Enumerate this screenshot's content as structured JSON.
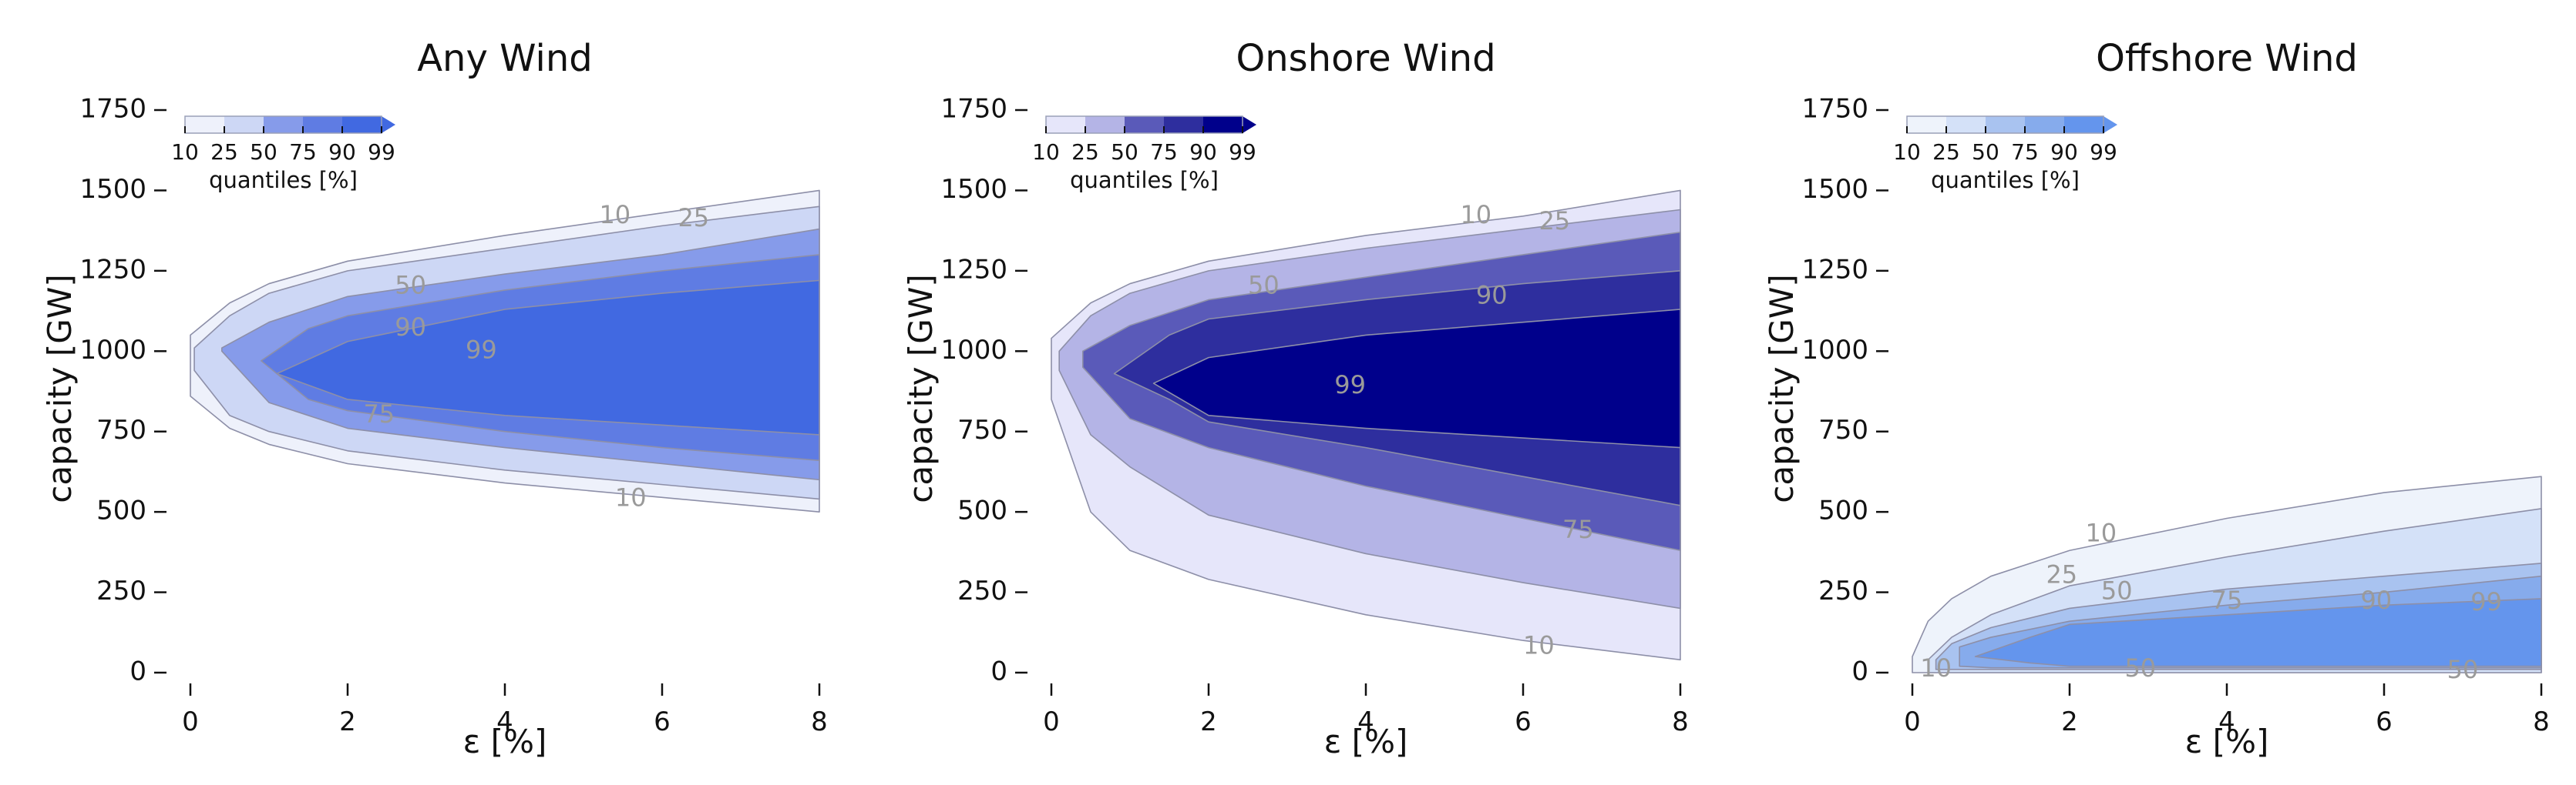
{
  "chart_data": [
    {
      "type": "contour",
      "title": "Any Wind",
      "xlabel": "ε [%]",
      "ylabel": "capacity [GW]",
      "xlim": [
        0,
        8
      ],
      "ylim": [
        0,
        1750
      ],
      "xticks": [
        "0",
        "2",
        "4",
        "6",
        "8"
      ],
      "yticks": [
        "0",
        "250",
        "500",
        "750",
        "1000",
        "1250",
        "1500",
        "1750"
      ],
      "colorbar": {
        "label": "quantiles [%]",
        "ticks": [
          "10",
          "25",
          "50",
          "75",
          "90",
          "99"
        ],
        "colors": [
          "#eef1fb",
          "#cdd7f5",
          "#869bea",
          "#5f7ce3",
          "#4169e1"
        ]
      },
      "bands": [
        {
          "quantile": 10,
          "x": [
            0,
            0.5,
            1,
            2,
            4,
            6,
            8
          ],
          "lower": [
            860,
            760,
            710,
            650,
            590,
            545,
            500
          ],
          "upper": [
            1050,
            1150,
            1210,
            1280,
            1360,
            1430,
            1500
          ]
        },
        {
          "quantile": 25,
          "x": [
            0.05,
            0.5,
            1,
            2,
            4,
            6,
            8
          ],
          "lower": [
            940,
            800,
            750,
            690,
            630,
            585,
            540
          ],
          "upper": [
            1010,
            1110,
            1180,
            1250,
            1320,
            1390,
            1450
          ]
        },
        {
          "quantile": 50,
          "x": [
            0.4,
            1,
            2,
            4,
            6,
            8
          ],
          "lower": [
            1000,
            840,
            760,
            700,
            650,
            600
          ],
          "upper": [
            1010,
            1090,
            1170,
            1240,
            1300,
            1380
          ]
        },
        {
          "quantile": 75,
          "x": [
            0.9,
            1.5,
            2,
            4,
            6,
            8
          ],
          "lower": [
            970,
            850,
            815,
            750,
            700,
            660
          ],
          "upper": [
            970,
            1070,
            1110,
            1190,
            1250,
            1300
          ]
        },
        {
          "quantile": 90,
          "x": [
            1.1,
            2,
            4,
            6,
            8
          ],
          "lower": [
            930,
            850,
            800,
            770,
            740
          ],
          "upper": [
            930,
            1030,
            1130,
            1180,
            1220
          ]
        }
      ],
      "contour_labels": [
        {
          "text": "10",
          "x": 5.6,
          "y": 540
        },
        {
          "text": "10",
          "x": 5.4,
          "y": 1420
        },
        {
          "text": "25",
          "x": 6.4,
          "y": 1410
        },
        {
          "text": "50",
          "x": 2.8,
          "y": 1200
        },
        {
          "text": "75",
          "x": 2.4,
          "y": 800
        },
        {
          "text": "90",
          "x": 2.8,
          "y": 1070
        },
        {
          "text": "99",
          "x": 3.7,
          "y": 1000
        }
      ]
    },
    {
      "type": "contour",
      "title": "Onshore Wind",
      "xlabel": "ε [%]",
      "ylabel": "capacity [GW]",
      "xlim": [
        0,
        8
      ],
      "ylim": [
        0,
        1750
      ],
      "xticks": [
        "0",
        "2",
        "4",
        "6",
        "8"
      ],
      "yticks": [
        "0",
        "250",
        "500",
        "750",
        "1000",
        "1250",
        "1500",
        "1750"
      ],
      "colorbar": {
        "label": "quantiles [%]",
        "ticks": [
          "10",
          "25",
          "50",
          "75",
          "90",
          "99"
        ],
        "colors": [
          "#e6e6fa",
          "#b4b4e6",
          "#5a5ab9",
          "#2e2e9e",
          "#00008b"
        ]
      },
      "bands": [
        {
          "quantile": 10,
          "x": [
            0,
            0.5,
            1,
            2,
            4,
            6,
            8
          ],
          "lower": [
            850,
            500,
            380,
            290,
            180,
            100,
            40
          ],
          "upper": [
            1040,
            1150,
            1210,
            1280,
            1360,
            1420,
            1500
          ]
        },
        {
          "quantile": 25,
          "x": [
            0.1,
            0.5,
            1,
            2,
            4,
            6,
            8
          ],
          "lower": [
            940,
            740,
            640,
            490,
            370,
            280,
            200
          ],
          "upper": [
            1000,
            1110,
            1180,
            1250,
            1320,
            1380,
            1440
          ]
        },
        {
          "quantile": 50,
          "x": [
            0.4,
            1,
            2,
            4,
            6,
            8
          ],
          "lower": [
            950,
            790,
            700,
            580,
            480,
            380
          ],
          "upper": [
            1000,
            1080,
            1160,
            1230,
            1300,
            1370
          ]
        },
        {
          "quantile": 75,
          "x": [
            0.8,
            1.5,
            2,
            4,
            6,
            8
          ],
          "lower": [
            930,
            850,
            780,
            700,
            610,
            520
          ],
          "upper": [
            930,
            1050,
            1100,
            1160,
            1210,
            1250
          ]
        },
        {
          "quantile": 90,
          "x": [
            1.3,
            2,
            4,
            6,
            8
          ],
          "lower": [
            900,
            800,
            760,
            730,
            700
          ],
          "upper": [
            900,
            980,
            1050,
            1090,
            1130
          ]
        }
      ],
      "contour_labels": [
        {
          "text": "10",
          "x": 6.2,
          "y": 80
        },
        {
          "text": "10",
          "x": 5.4,
          "y": 1420
        },
        {
          "text": "25",
          "x": 6.4,
          "y": 1400
        },
        {
          "text": "50",
          "x": 2.7,
          "y": 1200
        },
        {
          "text": "75",
          "x": 6.7,
          "y": 440
        },
        {
          "text": "90",
          "x": 5.6,
          "y": 1170
        },
        {
          "text": "99",
          "x": 3.8,
          "y": 890
        }
      ]
    },
    {
      "type": "contour",
      "title": "Offshore Wind",
      "xlabel": "ε [%]",
      "ylabel": "capacity [GW]",
      "xlim": [
        0,
        8
      ],
      "ylim": [
        0,
        1750
      ],
      "xticks": [
        "0",
        "2",
        "4",
        "6",
        "8"
      ],
      "yticks": [
        "0",
        "250",
        "500",
        "750",
        "1000",
        "1250",
        "1500",
        "1750"
      ],
      "colorbar": {
        "label": "quantiles [%]",
        "ticks": [
          "10",
          "25",
          "50",
          "75",
          "90",
          "99"
        ],
        "colors": [
          "#eef3fb",
          "#d4e1f8",
          "#a9c3f0",
          "#86abec",
          "#6495ed"
        ]
      },
      "bands": [
        {
          "quantile": 10,
          "x": [
            0,
            0.2,
            0.5,
            1,
            2,
            4,
            6,
            8
          ],
          "lower": [
            0,
            0,
            0,
            0,
            0,
            0,
            0,
            0
          ],
          "upper": [
            50,
            160,
            230,
            300,
            380,
            480,
            560,
            610
          ]
        },
        {
          "quantile": 25,
          "x": [
            0.2,
            0.5,
            1,
            2,
            4,
            6,
            8
          ],
          "lower": [
            0,
            0,
            0,
            0,
            0,
            0,
            0
          ],
          "upper": [
            40,
            110,
            180,
            270,
            360,
            440,
            510
          ]
        },
        {
          "quantile": 50,
          "x": [
            0.3,
            0.5,
            1,
            2,
            4,
            6,
            8
          ],
          "lower": [
            10,
            10,
            10,
            10,
            10,
            10,
            10
          ],
          "upper": [
            40,
            90,
            140,
            200,
            260,
            300,
            340
          ]
        },
        {
          "quantile": 75,
          "x": [
            0.6,
            1,
            2,
            4,
            6,
            8
          ],
          "lower": [
            20,
            15,
            15,
            15,
            15,
            15
          ],
          "upper": [
            80,
            110,
            160,
            210,
            250,
            300
          ]
        },
        {
          "quantile": 90,
          "x": [
            0.8,
            1.5,
            2,
            4,
            6,
            8
          ],
          "lower": [
            50,
            30,
            20,
            20,
            20,
            20
          ],
          "upper": [
            50,
            110,
            150,
            180,
            210,
            230
          ]
        }
      ],
      "contour_labels": [
        {
          "text": "10",
          "x": 0.3,
          "y": 10
        },
        {
          "text": "10",
          "x": 2.4,
          "y": 430
        },
        {
          "text": "25",
          "x": 1.9,
          "y": 300
        },
        {
          "text": "50",
          "x": 2.6,
          "y": 250
        },
        {
          "text": "50",
          "x": 2.9,
          "y": 10
        },
        {
          "text": "50",
          "x": 7.0,
          "y": 5
        },
        {
          "text": "75",
          "x": 4.0,
          "y": 220
        },
        {
          "text": "90",
          "x": 5.9,
          "y": 220
        },
        {
          "text": "99",
          "x": 7.3,
          "y": 215
        }
      ]
    }
  ]
}
